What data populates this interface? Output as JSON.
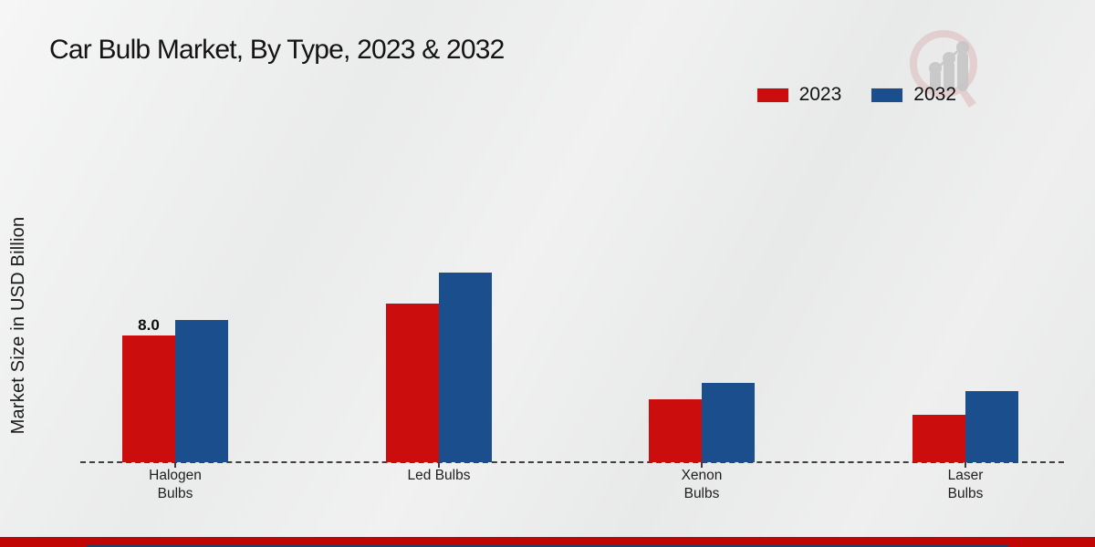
{
  "page": {
    "title": "Car Bulb Market, By Type, 2023 & 2032",
    "footer_accent_red": "#c10505",
    "footer_accent_navy": "#1e4170"
  },
  "chart_data": {
    "type": "bar",
    "title": "Car Bulb Market, By Type, 2023 & 2032",
    "xlabel": "",
    "ylabel": "Market Size in USD Billion",
    "units": "USD Billion",
    "categories": [
      "Halogen\nBulbs",
      "Led Bulbs",
      "Xenon\nBulbs",
      "Laser\nBulbs"
    ],
    "series": [
      {
        "name": "2023",
        "color": "#cb0d0e",
        "values": [
          8.0,
          10.0,
          4.0,
          3.0
        ],
        "point_labels": [
          "8.0",
          "",
          "",
          ""
        ]
      },
      {
        "name": "2032",
        "color": "#1b4e8c",
        "values": [
          9.0,
          12.0,
          5.0,
          4.5
        ],
        "point_labels": [
          "",
          "",
          "",
          ""
        ]
      }
    ],
    "ylim": [
      0,
      12.5
    ],
    "grid": false,
    "legend_position": "top-right",
    "baseline_style": "dashed"
  }
}
